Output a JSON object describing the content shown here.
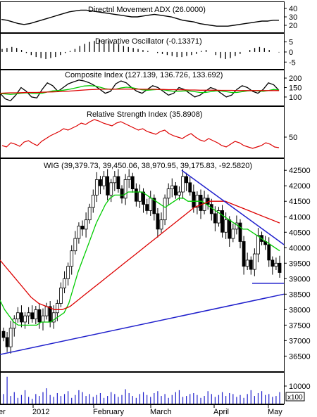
{
  "colors": {
    "ohlc": "#000000",
    "fast_ma": "#00cc00",
    "slow_ma": "#dd0000",
    "trend": "#2020cc",
    "rsi": "#dd0000",
    "panel_border": "#000000"
  },
  "chart_data": [
    {
      "type": "line",
      "title": "Directnl Movement ADX (26.0000)",
      "y_ticks": [
        "40",
        "30",
        "20"
      ],
      "ylim": [
        15,
        45
      ],
      "series": [
        {
          "values": [
            27,
            26,
            24,
            22,
            21,
            22,
            24,
            26,
            28,
            30,
            32,
            34,
            36,
            37,
            38,
            38,
            37,
            36,
            35,
            34,
            33,
            32,
            31,
            30,
            30,
            31,
            32,
            33,
            32,
            31,
            30,
            28,
            26,
            25,
            24,
            22,
            21,
            20,
            19,
            19,
            19,
            20,
            21,
            22,
            23,
            24,
            25,
            25,
            26,
            26
          ]
        }
      ]
    },
    {
      "type": "bar",
      "title": "Derivative Oscillator (-0.13371)",
      "y_ticks": [
        "5",
        "0",
        "-5"
      ],
      "ylim": [
        -7,
        8
      ],
      "series": [
        {
          "values": [
            1.5,
            2,
            2.5,
            2,
            1,
            -0.5,
            -1.5,
            -2.5,
            -3,
            -3.5,
            -3,
            -2.5,
            -1.5,
            -0.5,
            0.5,
            1.5,
            3,
            4,
            5,
            5.5,
            6,
            6,
            5.5,
            5,
            4,
            3,
            2.5,
            2,
            1.5,
            1,
            0.5,
            0,
            -0.5,
            -1,
            -1.5,
            -2,
            -2.5,
            -2.5,
            -2,
            -1.5,
            -1,
            0.5,
            1,
            0,
            -1.5,
            -3,
            -3.5,
            -3,
            -2,
            -1,
            0,
            1,
            2,
            2.5,
            2,
            1,
            0,
            -0.2
          ]
        }
      ]
    },
    {
      "type": "line",
      "title": "Composite Index (127.139, 136.726, 133.692)",
      "y_ticks": [
        "200",
        "150",
        "100"
      ],
      "ylim": [
        70,
        230
      ],
      "series": [
        {
          "values": [
            120,
            90,
            80,
            110,
            150,
            130,
            100,
            95,
            140,
            175,
            160,
            130,
            150,
            170,
            180,
            190,
            185,
            175,
            160,
            140,
            120,
            130,
            170,
            185,
            175,
            150,
            130,
            120,
            140,
            160,
            150,
            130,
            110,
            120,
            150,
            140,
            120,
            100,
            110,
            130,
            150,
            140,
            120,
            100,
            110,
            140,
            160,
            150,
            130,
            120,
            140,
            175,
            165,
            135
          ]
        },
        {
          "values": [
            118,
            116,
            114,
            116,
            120,
            122,
            120,
            118,
            120,
            126,
            132,
            134,
            136,
            140,
            146,
            152,
            158,
            160,
            158,
            152,
            144,
            140,
            142,
            148,
            152,
            150,
            144,
            138,
            136,
            138,
            140,
            138,
            134,
            130,
            130,
            132,
            132,
            128,
            124,
            124,
            128,
            132,
            132,
            128,
            124,
            124,
            128,
            132,
            134,
            132,
            130,
            134,
            140,
            137
          ]
        },
        {
          "values": [
            120,
            121,
            122,
            122,
            123,
            124,
            124,
            124,
            125,
            126,
            127,
            128,
            129,
            131,
            133,
            135,
            137,
            139,
            140,
            141,
            141,
            141,
            141,
            142,
            142,
            142,
            142,
            141,
            141,
            141,
            140,
            140,
            139,
            139,
            138,
            138,
            137,
            137,
            136,
            136,
            136,
            136,
            135,
            135,
            135,
            134,
            134,
            134,
            134,
            134,
            134,
            134,
            134,
            134
          ]
        }
      ]
    },
    {
      "type": "line",
      "title": "Relative Strength Index (35.8908)",
      "y_ticks": [
        "50"
      ],
      "ylim": [
        25,
        90
      ],
      "series": [
        {
          "values": [
            38,
            36,
            42,
            40,
            37,
            43,
            45,
            41,
            38,
            44,
            48,
            52,
            55,
            58,
            62,
            60,
            63,
            66,
            70,
            68,
            72,
            75,
            73,
            70,
            68,
            66,
            70,
            72,
            69,
            66,
            63,
            60,
            62,
            58,
            56,
            54,
            58,
            60,
            55,
            52,
            50,
            48,
            52,
            55,
            50,
            46,
            44,
            48,
            45,
            42,
            38,
            36,
            40,
            44,
            42,
            38,
            36,
            34,
            36,
            38,
            42,
            40,
            36,
            35
          ]
        }
      ]
    },
    {
      "type": "candlestick",
      "title": "WIG (39,379.73, 39,450.06, 38,970.95, 39,175.83, -92.5820)",
      "x_ticks": [
        "er",
        "2012",
        "February",
        "March",
        "April",
        "May"
      ],
      "y_ticks": [
        "42500",
        "42000",
        "41500",
        "41000",
        "40500",
        "40000",
        "39500",
        "39000",
        "38500",
        "38000",
        "37500",
        "37000",
        "36500"
      ],
      "ylim": [
        36100,
        42800
      ],
      "volume_ticks": [
        "10000",
        "x100"
      ],
      "series": [
        {
          "name": "close",
          "values": [
            37100,
            36800,
            37400,
            37700,
            37900,
            37600,
            37800,
            37900,
            37700,
            38000,
            37600,
            37800,
            38100,
            37600,
            37900,
            38200,
            38700,
            39000,
            39400,
            39900,
            40300,
            40700,
            40600,
            40900,
            41300,
            41700,
            42200,
            42000,
            42300,
            41700,
            42100,
            42300,
            41900,
            41600,
            42200,
            42300,
            41900,
            41500,
            41800,
            41400,
            41200,
            41600,
            41100,
            40600,
            40900,
            41600,
            41900,
            42000,
            41700,
            41800,
            42300,
            42100,
            41800,
            41300,
            41700,
            41200,
            41600,
            41400,
            41100,
            40800,
            41200,
            40500,
            40900,
            40300,
            40600,
            40800,
            40200,
            39400,
            39600,
            39300,
            39800,
            40400,
            40200,
            40100,
            39600,
            39400,
            39500,
            39200
          ]
        },
        {
          "name": "fast_ma",
          "values": [
            38300,
            38000,
            37800,
            37600,
            37500,
            37500,
            37500,
            37500,
            37500,
            37600,
            37600,
            37600,
            37700,
            37800,
            37900,
            38200,
            38700,
            39200,
            39600,
            40000,
            40400,
            40800,
            41100,
            41400,
            41600,
            41700,
            41700,
            41700,
            41800,
            41800,
            41800,
            41800,
            41700,
            41600,
            41500,
            41400,
            41300,
            41400,
            41500,
            41600,
            41600,
            41500,
            41500,
            41500,
            41500,
            41400,
            41300,
            41200,
            41100,
            41000,
            40900,
            40800,
            40700,
            40600,
            40600,
            40500,
            40400,
            40300,
            40200,
            40100,
            40000,
            39900
          ]
        },
        {
          "name": "slow_ma",
          "values": [
            39600,
            39300,
            39000,
            38700,
            38400,
            38200,
            38100,
            38000,
            38000,
            38100,
            38300,
            38500,
            38700,
            38900,
            39100,
            39300,
            39500,
            39700,
            39900,
            40100,
            40300,
            40500,
            40700,
            40900,
            41100,
            41300,
            41400,
            41500,
            41500,
            41500,
            41400,
            41300,
            41200,
            41100,
            41000,
            40900,
            40800
          ]
        },
        {
          "name": "volume",
          "values": [
            10,
            28,
            8,
            12,
            6,
            9,
            14,
            7,
            5,
            10,
            8,
            12,
            16,
            9,
            7,
            11,
            8,
            10,
            13,
            6,
            9,
            14,
            12,
            8,
            10,
            7,
            9,
            11,
            6,
            8,
            12,
            10,
            7,
            9,
            15,
            11,
            8,
            6,
            10,
            12,
            9,
            7,
            11,
            13,
            8,
            10,
            6,
            9,
            12,
            14,
            7,
            8,
            10,
            11,
            9,
            6,
            8,
            13,
            10,
            7,
            9,
            12,
            8,
            11,
            10,
            7,
            9,
            6,
            10,
            14,
            8,
            11,
            13,
            9,
            10,
            7,
            8,
            12
          ]
        },
        {
          "name": "support_line",
          "values": [
            36550,
            38500
          ]
        },
        {
          "name": "resistance_line",
          "values": [
            42500,
            40100
          ]
        },
        {
          "name": "base_line",
          "values": [
            38850,
            38850
          ]
        }
      ]
    }
  ]
}
